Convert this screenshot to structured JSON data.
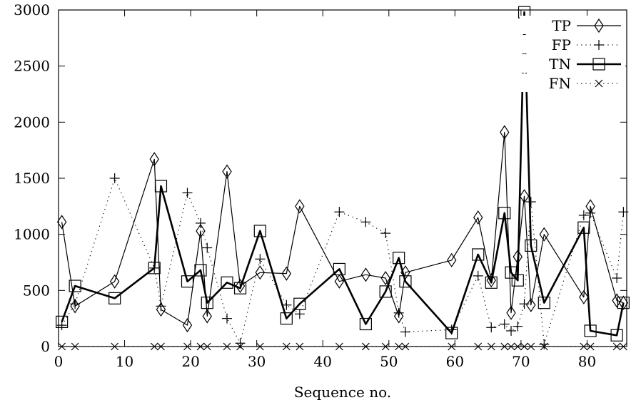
{
  "chart_data": {
    "type": "line",
    "title": "",
    "xlabel": "Sequence no.",
    "ylabel": "",
    "xlim": [
      0,
      86
    ],
    "ylim": [
      0,
      3000
    ],
    "xticks": [
      0,
      10,
      20,
      30,
      40,
      50,
      60,
      70,
      80
    ],
    "yticks": [
      0,
      500,
      1000,
      1500,
      2000,
      2500,
      3000
    ],
    "grid": false,
    "legend_position": "top-right",
    "series": [
      {
        "name": "TP",
        "marker": "diamond",
        "line": "thin-solid",
        "color": "#000000",
        "points": [
          [
            0.5,
            1110
          ],
          [
            2.5,
            360
          ],
          [
            8.5,
            580
          ],
          [
            14.5,
            1670
          ],
          [
            15.5,
            330
          ],
          [
            19.5,
            190
          ],
          [
            21.5,
            1030
          ],
          [
            22.5,
            270
          ],
          [
            25.5,
            1560
          ],
          [
            27.5,
            540
          ],
          [
            30.5,
            660
          ],
          [
            34.5,
            650
          ],
          [
            36.5,
            1250
          ],
          [
            42.5,
            580
          ],
          [
            46.5,
            640
          ],
          [
            49.5,
            610
          ],
          [
            51.5,
            270
          ],
          [
            52.5,
            660
          ],
          [
            59.5,
            770
          ],
          [
            63.5,
            1150
          ],
          [
            65.5,
            590
          ],
          [
            67.5,
            1910
          ],
          [
            68.5,
            300
          ],
          [
            69.5,
            800
          ],
          [
            70.5,
            1340
          ],
          [
            71.5,
            370
          ],
          [
            73.5,
            1000
          ],
          [
            79.5,
            440
          ],
          [
            80.5,
            1250
          ],
          [
            84.5,
            410
          ],
          [
            85.5,
            390
          ]
        ]
      },
      {
        "name": "FP",
        "marker": "plus",
        "line": "dotted",
        "color": "#000000",
        "points": [
          [
            0.5,
            190
          ],
          [
            2.5,
            380
          ],
          [
            8.5,
            1500
          ],
          [
            14.5,
            700
          ],
          [
            15.5,
            360
          ],
          [
            19.5,
            1370
          ],
          [
            21.5,
            1100
          ],
          [
            22.5,
            880
          ],
          [
            25.5,
            250
          ],
          [
            27.5,
            30
          ],
          [
            30.5,
            780
          ],
          [
            34.5,
            370
          ],
          [
            36.5,
            290
          ],
          [
            42.5,
            1200
          ],
          [
            46.5,
            1110
          ],
          [
            49.5,
            1010
          ],
          [
            51.5,
            300
          ],
          [
            52.5,
            130
          ],
          [
            59.5,
            150
          ],
          [
            63.5,
            630
          ],
          [
            65.5,
            170
          ],
          [
            67.5,
            200
          ],
          [
            68.5,
            140
          ],
          [
            69.5,
            180
          ],
          [
            70.5,
            380
          ],
          [
            71.5,
            1290
          ],
          [
            73.5,
            20
          ],
          [
            79.5,
            1170
          ],
          [
            80.5,
            1190
          ],
          [
            84.5,
            610
          ],
          [
            85.5,
            1200
          ]
        ]
      },
      {
        "name": "TN",
        "marker": "square",
        "line": "thick-solid",
        "color": "#000000",
        "points": [
          [
            0.5,
            220
          ],
          [
            2.5,
            540
          ],
          [
            8.5,
            430
          ],
          [
            14.5,
            700
          ],
          [
            15.5,
            1430
          ],
          [
            19.5,
            580
          ],
          [
            21.5,
            680
          ],
          [
            22.5,
            390
          ],
          [
            25.5,
            570
          ],
          [
            27.5,
            520
          ],
          [
            30.5,
            1030
          ],
          [
            34.5,
            250
          ],
          [
            36.5,
            380
          ],
          [
            42.5,
            690
          ],
          [
            46.5,
            200
          ],
          [
            49.5,
            490
          ],
          [
            51.5,
            790
          ],
          [
            52.5,
            580
          ],
          [
            59.5,
            120
          ],
          [
            63.5,
            820
          ],
          [
            65.5,
            570
          ],
          [
            67.5,
            1190
          ],
          [
            68.5,
            660
          ],
          [
            69.5,
            590
          ],
          [
            70.5,
            2980
          ],
          [
            71.5,
            900
          ],
          [
            73.5,
            390
          ],
          [
            79.5,
            1060
          ],
          [
            80.5,
            140
          ],
          [
            84.5,
            100
          ],
          [
            85.5,
            390
          ]
        ]
      },
      {
        "name": "FN",
        "marker": "cross",
        "line": "dotted",
        "color": "#000000",
        "points": [
          [
            0.5,
            0
          ],
          [
            2.5,
            0
          ],
          [
            8.5,
            0
          ],
          [
            14.5,
            0
          ],
          [
            15.5,
            0
          ],
          [
            19.5,
            0
          ],
          [
            21.5,
            0
          ],
          [
            22.5,
            0
          ],
          [
            25.5,
            0
          ],
          [
            27.5,
            0
          ],
          [
            30.5,
            0
          ],
          [
            34.5,
            0
          ],
          [
            36.5,
            0
          ],
          [
            42.5,
            0
          ],
          [
            46.5,
            0
          ],
          [
            49.5,
            0
          ],
          [
            51.5,
            0
          ],
          [
            52.5,
            0
          ],
          [
            59.5,
            0
          ],
          [
            63.5,
            0
          ],
          [
            65.5,
            0
          ],
          [
            67.5,
            0
          ],
          [
            68.5,
            0
          ],
          [
            69.5,
            0
          ],
          [
            70.5,
            0
          ],
          [
            71.5,
            0
          ],
          [
            73.5,
            0
          ],
          [
            79.5,
            0
          ],
          [
            80.5,
            0
          ],
          [
            84.5,
            0
          ],
          [
            85.5,
            0
          ]
        ]
      }
    ]
  }
}
